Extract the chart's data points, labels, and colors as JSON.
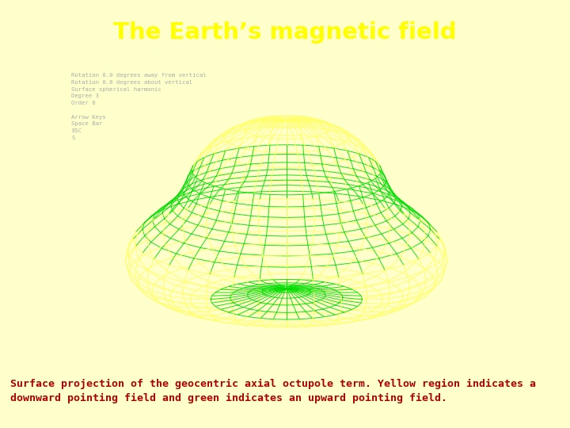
{
  "title": "The Earth’s magnetic field",
  "title_color": "#FFFF00",
  "title_bg_color": "#1a3a6b",
  "bg_color": "#FFFFCC",
  "image_bg_color": "#000000",
  "caption_line1": "Surface projection of the geocentric axial octupole term. Yellow region indicates a",
  "caption_line2": "downward pointing field and green indicates an upward pointing field.",
  "caption_color": "#AA0000",
  "caption_fontsize": 9.5,
  "info_lines": [
    "Rotation 0.0 degrees away from vertical",
    "Rotation 0.0 degrees about vertical",
    "Surface spherical harmonic",
    "Degree 3",
    "Order 0",
    "",
    "Arrow Keys",
    "Space Bar",
    "ESC",
    "S"
  ],
  "info_color": "#AAAAAA",
  "grid_color_green": "#00DD00",
  "grid_color_yellow": "#FFFF66",
  "n_theta": 28,
  "n_phi": 36,
  "elev_deg": 25,
  "scale_deform": 0.35
}
